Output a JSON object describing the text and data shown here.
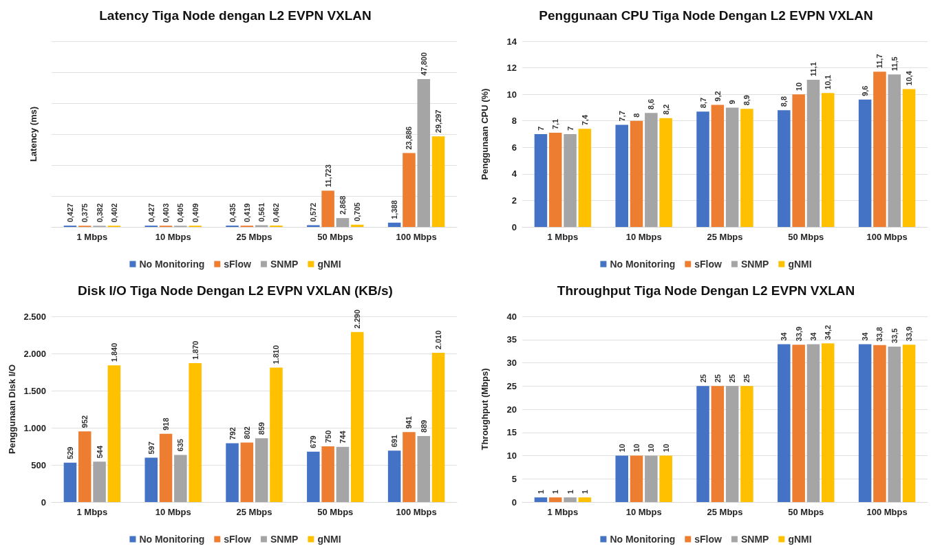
{
  "chart_data": [
    {
      "type": "bar",
      "title": "Latency Tiga Node dengan L2 EVPN VXLAN",
      "ylabel": "Latency (ms)",
      "categories": [
        "1 Mbps",
        "10 Mbps",
        "25 Mbps",
        "50 Mbps",
        "100 Mbps"
      ],
      "series": [
        {
          "name": "No Monitoring",
          "color": "#4472c4",
          "values": [
            0.427,
            0.427,
            0.435,
            0.572,
            1.388
          ],
          "value_labels": [
            "0,427",
            "0,427",
            "0,435",
            "0,572",
            "1,388"
          ]
        },
        {
          "name": "sFlow",
          "color": "#ed7d31",
          "values": [
            0.375,
            0.403,
            0.419,
            11.723,
            23.886
          ],
          "value_labels": [
            "0,375",
            "0,403",
            "0,419",
            "11,723",
            "23,886"
          ]
        },
        {
          "name": "SNMP",
          "color": "#a5a5a5",
          "values": [
            0.382,
            0.405,
            0.561,
            2.868,
            47.8
          ],
          "value_labels": [
            "0,382",
            "0,405",
            "0,561",
            "2,868",
            "47,800"
          ]
        },
        {
          "name": "gNMI",
          "color": "#ffc000",
          "values": [
            0.402,
            0.409,
            0.462,
            0.705,
            29.297
          ],
          "value_labels": [
            "0,402",
            "0,409",
            "0,462",
            "0,705",
            "29,297"
          ]
        }
      ],
      "ylim": [
        0,
        60
      ],
      "yticks": [
        {
          "value": 0,
          "label": null
        },
        {
          "value": 10,
          "label": null
        },
        {
          "value": 20,
          "label": null
        },
        {
          "value": 30,
          "label": null
        },
        {
          "value": 40,
          "label": null
        },
        {
          "value": 50,
          "label": null
        },
        {
          "value": 60,
          "label": null
        }
      ],
      "tick_labels": "x",
      "grid": "y",
      "legend": "bottom"
    },
    {
      "type": "bar",
      "title": "Penggunaan CPU Tiga Node Dengan L2 EVPN VXLAN",
      "ylabel": "Penggunaan CPU (%)",
      "categories": [
        "1 Mbps",
        "10 Mbps",
        "25 Mbps",
        "50 Mbps",
        "100 Mbps"
      ],
      "series": [
        {
          "name": "No Monitoring",
          "color": "#4472c4",
          "values": [
            7,
            7.7,
            8.7,
            8.8,
            9.6
          ],
          "value_labels": [
            "7",
            "7,7",
            "8,7",
            "8,8",
            "9,6"
          ]
        },
        {
          "name": "sFlow",
          "color": "#ed7d31",
          "values": [
            7.1,
            8,
            9.2,
            10,
            11.7
          ],
          "value_labels": [
            "7,1",
            "8",
            "9,2",
            "10",
            "11,7"
          ]
        },
        {
          "name": "SNMP",
          "color": "#a5a5a5",
          "values": [
            7,
            8.6,
            9,
            11.1,
            11.5
          ],
          "value_labels": [
            "7",
            "8,6",
            "9",
            "11,1",
            "11,5"
          ]
        },
        {
          "name": "gNMI",
          "color": "#ffc000",
          "values": [
            7.4,
            8.2,
            8.9,
            10.1,
            10.4
          ],
          "value_labels": [
            "7,4",
            "8,2",
            "8,9",
            "10,1",
            "10,4"
          ]
        }
      ],
      "ylim": [
        0,
        14
      ],
      "yticks": [
        0,
        2,
        4,
        6,
        8,
        10,
        12,
        14
      ],
      "grid": "y",
      "legend": "bottom"
    },
    {
      "type": "bar",
      "title": "Disk I/O Tiga Node Dengan L2 EVPN VXLAN (KB/s)",
      "ylabel": "Penggunaan Disk I/O",
      "categories": [
        "1 Mbps",
        "10 Mbps",
        "25 Mbps",
        "50 Mbps",
        "100 Mbps"
      ],
      "series": [
        {
          "name": "No Monitoring",
          "color": "#4472c4",
          "values": [
            529,
            597,
            792,
            679,
            691
          ],
          "value_labels": [
            "529",
            "597",
            "792",
            "679",
            "691"
          ]
        },
        {
          "name": "sFlow",
          "color": "#ed7d31",
          "values": [
            952,
            918,
            802,
            750,
            941
          ],
          "value_labels": [
            "952",
            "918",
            "802",
            "750",
            "941"
          ]
        },
        {
          "name": "SNMP",
          "color": "#a5a5a5",
          "values": [
            544,
            635,
            859,
            744,
            889
          ],
          "value_labels": [
            "544",
            "635",
            "859",
            "744",
            "889"
          ]
        },
        {
          "name": "gNMI",
          "color": "#ffc000",
          "values": [
            1840,
            1870,
            1810,
            2290,
            2010
          ],
          "value_labels": [
            "1.840",
            "1.870",
            "1.810",
            "2.290",
            "2.010"
          ]
        }
      ],
      "ylim": [
        0,
        2500
      ],
      "yticks": [
        0,
        {
          "value": 500,
          "label": "500"
        },
        {
          "value": 1000,
          "label": "1.000"
        },
        {
          "value": 1500,
          "label": "1.500"
        },
        {
          "value": 2000,
          "label": "2.000"
        },
        {
          "value": 2500,
          "label": "2.500"
        }
      ],
      "grid": "y",
      "legend": "bottom"
    },
    {
      "type": "bar",
      "title": "Throughput Tiga Node Dengan L2 EVPN VXLAN",
      "ylabel": "Throughput (Mbps)",
      "categories": [
        "1 Mbps",
        "10 Mbps",
        "25 Mbps",
        "50 Mbps",
        "100 Mbps"
      ],
      "series": [
        {
          "name": "No Monitoring",
          "color": "#4472c4",
          "values": [
            1,
            10,
            25,
            34,
            34
          ],
          "value_labels": [
            "1",
            "10",
            "25",
            "34",
            "34"
          ]
        },
        {
          "name": "sFlow",
          "color": "#ed7d31",
          "values": [
            1,
            10,
            25,
            33.9,
            33.8
          ],
          "value_labels": [
            "1",
            "10",
            "25",
            "33,9",
            "33,8"
          ]
        },
        {
          "name": "SNMP",
          "color": "#a5a5a5",
          "values": [
            1,
            10,
            25,
            34,
            33.5
          ],
          "value_labels": [
            "1",
            "10",
            "25",
            "34",
            "33,5"
          ]
        },
        {
          "name": "gNMI",
          "color": "#ffc000",
          "values": [
            1,
            10,
            25,
            34.2,
            33.9
          ],
          "value_labels": [
            "1",
            "10",
            "25",
            "34,2",
            "33,9"
          ]
        }
      ],
      "ylim": [
        0,
        40
      ],
      "yticks": [
        0,
        5,
        10,
        15,
        20,
        25,
        30,
        35,
        40
      ],
      "grid": "y",
      "legend": "bottom"
    }
  ]
}
